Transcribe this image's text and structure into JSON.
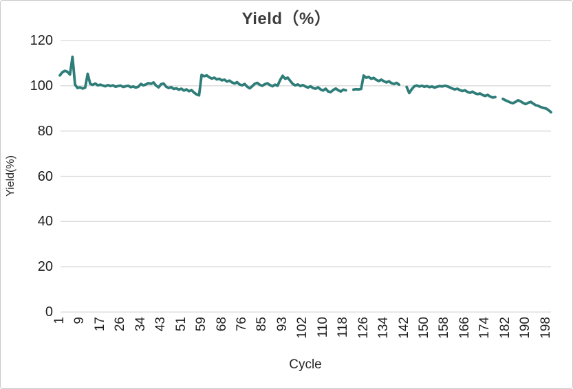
{
  "colors": {
    "line": "#2e7d78",
    "gridline": "#d9d9d9",
    "tick_text": "#1f1f1f",
    "title_text": "#3d3d3d",
    "border": "#c9c9c9",
    "background": "#ffffff"
  },
  "chart_data": {
    "type": "line",
    "title": "Yield（%）",
    "xlabel": "Cycle",
    "ylabel": "Yield(%)",
    "ylim": [
      0,
      120
    ],
    "y_ticks": [
      0,
      20,
      40,
      60,
      80,
      100,
      120
    ],
    "x_tick_labels": [
      "1",
      "9",
      "17",
      "26",
      "34",
      "43",
      "51",
      "59",
      "68",
      "76",
      "85",
      "93",
      "102",
      "110",
      "118",
      "126",
      "134",
      "142",
      "150",
      "158",
      "166",
      "174",
      "182",
      "190",
      "198"
    ],
    "x_tick_every": 8,
    "grid": "horizontal",
    "legend": "none",
    "line_color": "#2e7d78",
    "categories": [
      1,
      2,
      3,
      4,
      5,
      6,
      7,
      8,
      9,
      10,
      11,
      12,
      13,
      14,
      15,
      16,
      17,
      18,
      19,
      21,
      22,
      23,
      24,
      25,
      26,
      27,
      28,
      29,
      30,
      31,
      32,
      33,
      34,
      35,
      36,
      37,
      39,
      40,
      41,
      42,
      43,
      44,
      45,
      46,
      47,
      48,
      49,
      50,
      51,
      52,
      53,
      54,
      55,
      56,
      57,
      58,
      59,
      60,
      61,
      62,
      64,
      65,
      66,
      67,
      68,
      69,
      70,
      71,
      72,
      73,
      74,
      75,
      76,
      77,
      78,
      79,
      81,
      82,
      83,
      84,
      85,
      86,
      87,
      88,
      89,
      90,
      91,
      92,
      93,
      94,
      95,
      96,
      98,
      99,
      100,
      101,
      102,
      103,
      104,
      105,
      106,
      107,
      108,
      109,
      110,
      111,
      112,
      113,
      114,
      115,
      116,
      117,
      118,
      119,
      120,
      121,
      122,
      123,
      124,
      125,
      126,
      127,
      128,
      129,
      130,
      131,
      132,
      133,
      134,
      135,
      136,
      137,
      138,
      139,
      140,
      141,
      142,
      143,
      144,
      145,
      146,
      147,
      148,
      149,
      150,
      151,
      152,
      153,
      154,
      155,
      156,
      157,
      158,
      159,
      160,
      161,
      162,
      163,
      164,
      165,
      166,
      167,
      168,
      169,
      170,
      171,
      172,
      173,
      174,
      175,
      176,
      177,
      178,
      179,
      180,
      181,
      182,
      183,
      184,
      185,
      186,
      187,
      188,
      189,
      190,
      191,
      192,
      193,
      194,
      195,
      196,
      197,
      198,
      199,
      200
    ],
    "series": [
      {
        "name": "Yield",
        "values": [
          104.6,
          106.0,
          106.6,
          106.2,
          105.0,
          112.8,
          100.5,
          99.0,
          99.3,
          98.8,
          99.2,
          105.3,
          100.8,
          100.4,
          101.0,
          100.2,
          100.5,
          100.1,
          99.8,
          100.3,
          99.9,
          100.2,
          99.6,
          99.9,
          100.1,
          99.5,
          99.8,
          100.0,
          99.4,
          99.7,
          99.2,
          99.6,
          100.8,
          100.2,
          100.6,
          101.2,
          100.9,
          101.5,
          100.1,
          99.3,
          100.7,
          101.0,
          99.6,
          99.0,
          99.4,
          98.6,
          98.9,
          98.3,
          98.7,
          97.9,
          98.4,
          97.6,
          98.1,
          97.0,
          96.2,
          95.8,
          104.8,
          104.2,
          104.6,
          103.8,
          103.2,
          103.6,
          102.8,
          103.1,
          102.4,
          102.7,
          101.9,
          102.3,
          101.5,
          101.0,
          101.6,
          100.6,
          100.2,
          100.8,
          99.6,
          98.9,
          99.8,
          100.9,
          101.3,
          100.4,
          100.0,
          100.7,
          101.1,
          100.3,
          99.8,
          100.5,
          100.0,
          102.5,
          104.4,
          103.1,
          103.6,
          102.2,
          100.8,
          100.2,
          100.6,
          99.9,
          100.3,
          99.7,
          99.2,
          99.8,
          99.0,
          98.7,
          99.3,
          98.4,
          97.9,
          98.7,
          97.5,
          97.2,
          98.2,
          98.8,
          98.0,
          97.5,
          98.3,
          98.0,
          null,
          null,
          98.3,
          98.5,
          98.4,
          98.6,
          104.5,
          103.6,
          103.9,
          103.1,
          103.5,
          102.6,
          102.1,
          102.7,
          102.0,
          101.5,
          102.0,
          101.2,
          100.8,
          101.3,
          100.5,
          null,
          null,
          99.5,
          96.8,
          98.5,
          99.8,
          100.1,
          99.7,
          100.0,
          99.6,
          99.9,
          99.4,
          99.7,
          99.2,
          99.6,
          99.9,
          99.7,
          100.0,
          99.8,
          99.3,
          98.8,
          98.4,
          98.7,
          98.1,
          97.7,
          98.0,
          97.3,
          96.9,
          97.4,
          96.7,
          96.3,
          96.6,
          95.9,
          95.5,
          96.0,
          95.2,
          94.8,
          95.0,
          null,
          null,
          94.2,
          93.6,
          93.1,
          92.6,
          92.3,
          92.9,
          93.6,
          93.1,
          92.4,
          91.9,
          92.5,
          92.9,
          92.1,
          91.4,
          91.1,
          90.6,
          90.2,
          90.0,
          89.3,
          88.3
        ]
      }
    ]
  }
}
